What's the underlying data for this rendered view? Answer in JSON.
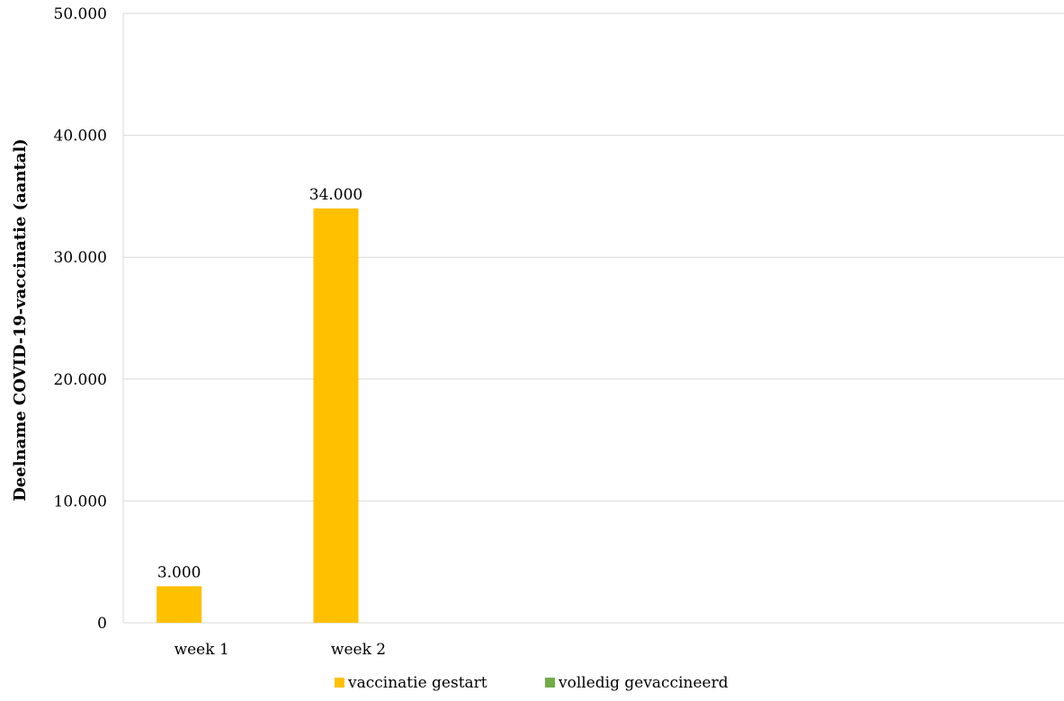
{
  "chart_data": {
    "type": "bar",
    "categories": [
      "week 1",
      "week 2"
    ],
    "series": [
      {
        "name": "vaccinatie gestart",
        "color": "#FFC000",
        "values": [
          3000,
          34000
        ],
        "labels": [
          "3.000",
          "34.000"
        ]
      },
      {
        "name": "volledig gevaccineerd",
        "color": "#70AD47",
        "values": [
          0,
          0
        ],
        "labels": [
          "",
          ""
        ]
      }
    ],
    "ylabel": "Deelname COVID-19-vaccinatie (aantal)",
    "ylim": [
      0,
      50000
    ],
    "yticks": [
      0,
      10000,
      20000,
      30000,
      40000,
      50000
    ],
    "ytick_labels": [
      "0",
      "10.000",
      "20.000",
      "30.000",
      "40.000",
      "50.000"
    ],
    "category_slots": 6,
    "grid": true,
    "legend_position": "bottom"
  }
}
